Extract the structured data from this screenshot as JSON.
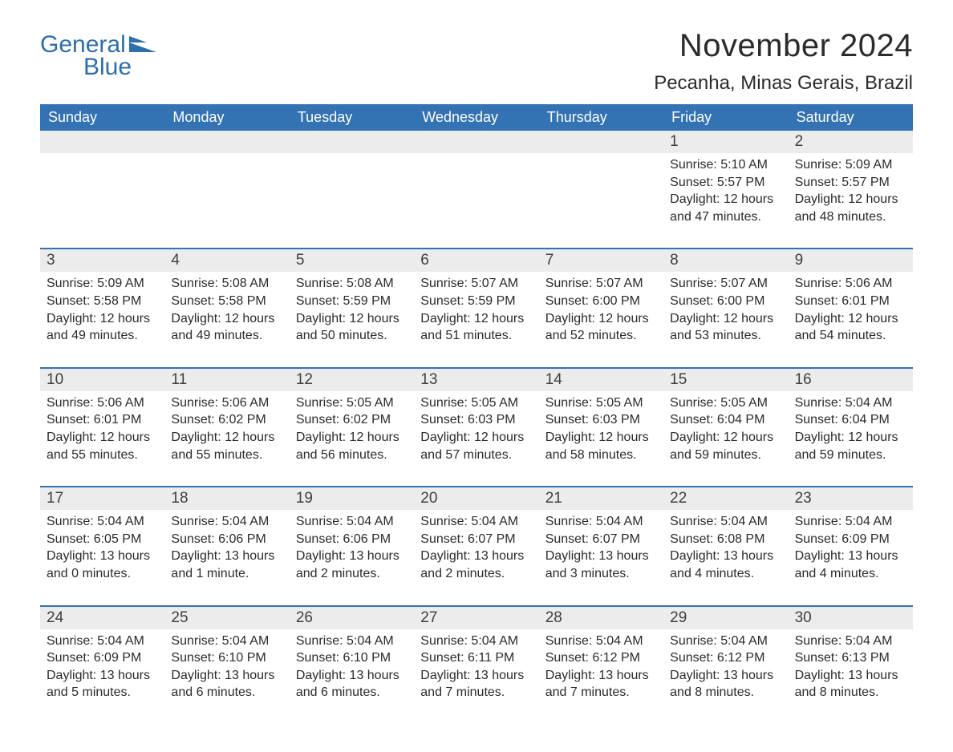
{
  "logo": {
    "word1": "General",
    "word2": "Blue"
  },
  "title": "November 2024",
  "location": "Pecanha, Minas Gerais, Brazil",
  "colors": {
    "header_bg": "#3373b4",
    "header_text": "#ffffff",
    "daynum_bg": "#ececec",
    "border": "#3373b4",
    "text": "#2b2b2b",
    "logo": "#2b6fae"
  },
  "typography": {
    "title_fontsize": 40,
    "location_fontsize": 24,
    "dayheader_fontsize": 18,
    "daynum_fontsize": 19,
    "body_fontsize": 16
  },
  "layout": {
    "type": "calendar",
    "columns": 7,
    "rows": 5,
    "first_weekday": "Sunday"
  },
  "day_names": [
    "Sunday",
    "Monday",
    "Tuesday",
    "Wednesday",
    "Thursday",
    "Friday",
    "Saturday"
  ],
  "weeks": [
    [
      {
        "empty": true
      },
      {
        "empty": true
      },
      {
        "empty": true
      },
      {
        "empty": true
      },
      {
        "empty": true
      },
      {
        "day": "1",
        "sunrise": "Sunrise: 5:10 AM",
        "sunset": "Sunset: 5:57 PM",
        "daylight": "Daylight: 12 hours and 47 minutes."
      },
      {
        "day": "2",
        "sunrise": "Sunrise: 5:09 AM",
        "sunset": "Sunset: 5:57 PM",
        "daylight": "Daylight: 12 hours and 48 minutes."
      }
    ],
    [
      {
        "day": "3",
        "sunrise": "Sunrise: 5:09 AM",
        "sunset": "Sunset: 5:58 PM",
        "daylight": "Daylight: 12 hours and 49 minutes."
      },
      {
        "day": "4",
        "sunrise": "Sunrise: 5:08 AM",
        "sunset": "Sunset: 5:58 PM",
        "daylight": "Daylight: 12 hours and 49 minutes."
      },
      {
        "day": "5",
        "sunrise": "Sunrise: 5:08 AM",
        "sunset": "Sunset: 5:59 PM",
        "daylight": "Daylight: 12 hours and 50 minutes."
      },
      {
        "day": "6",
        "sunrise": "Sunrise: 5:07 AM",
        "sunset": "Sunset: 5:59 PM",
        "daylight": "Daylight: 12 hours and 51 minutes."
      },
      {
        "day": "7",
        "sunrise": "Sunrise: 5:07 AM",
        "sunset": "Sunset: 6:00 PM",
        "daylight": "Daylight: 12 hours and 52 minutes."
      },
      {
        "day": "8",
        "sunrise": "Sunrise: 5:07 AM",
        "sunset": "Sunset: 6:00 PM",
        "daylight": "Daylight: 12 hours and 53 minutes."
      },
      {
        "day": "9",
        "sunrise": "Sunrise: 5:06 AM",
        "sunset": "Sunset: 6:01 PM",
        "daylight": "Daylight: 12 hours and 54 minutes."
      }
    ],
    [
      {
        "day": "10",
        "sunrise": "Sunrise: 5:06 AM",
        "sunset": "Sunset: 6:01 PM",
        "daylight": "Daylight: 12 hours and 55 minutes."
      },
      {
        "day": "11",
        "sunrise": "Sunrise: 5:06 AM",
        "sunset": "Sunset: 6:02 PM",
        "daylight": "Daylight: 12 hours and 55 minutes."
      },
      {
        "day": "12",
        "sunrise": "Sunrise: 5:05 AM",
        "sunset": "Sunset: 6:02 PM",
        "daylight": "Daylight: 12 hours and 56 minutes."
      },
      {
        "day": "13",
        "sunrise": "Sunrise: 5:05 AM",
        "sunset": "Sunset: 6:03 PM",
        "daylight": "Daylight: 12 hours and 57 minutes."
      },
      {
        "day": "14",
        "sunrise": "Sunrise: 5:05 AM",
        "sunset": "Sunset: 6:03 PM",
        "daylight": "Daylight: 12 hours and 58 minutes."
      },
      {
        "day": "15",
        "sunrise": "Sunrise: 5:05 AM",
        "sunset": "Sunset: 6:04 PM",
        "daylight": "Daylight: 12 hours and 59 minutes."
      },
      {
        "day": "16",
        "sunrise": "Sunrise: 5:04 AM",
        "sunset": "Sunset: 6:04 PM",
        "daylight": "Daylight: 12 hours and 59 minutes."
      }
    ],
    [
      {
        "day": "17",
        "sunrise": "Sunrise: 5:04 AM",
        "sunset": "Sunset: 6:05 PM",
        "daylight": "Daylight: 13 hours and 0 minutes."
      },
      {
        "day": "18",
        "sunrise": "Sunrise: 5:04 AM",
        "sunset": "Sunset: 6:06 PM",
        "daylight": "Daylight: 13 hours and 1 minute."
      },
      {
        "day": "19",
        "sunrise": "Sunrise: 5:04 AM",
        "sunset": "Sunset: 6:06 PM",
        "daylight": "Daylight: 13 hours and 2 minutes."
      },
      {
        "day": "20",
        "sunrise": "Sunrise: 5:04 AM",
        "sunset": "Sunset: 6:07 PM",
        "daylight": "Daylight: 13 hours and 2 minutes."
      },
      {
        "day": "21",
        "sunrise": "Sunrise: 5:04 AM",
        "sunset": "Sunset: 6:07 PM",
        "daylight": "Daylight: 13 hours and 3 minutes."
      },
      {
        "day": "22",
        "sunrise": "Sunrise: 5:04 AM",
        "sunset": "Sunset: 6:08 PM",
        "daylight": "Daylight: 13 hours and 4 minutes."
      },
      {
        "day": "23",
        "sunrise": "Sunrise: 5:04 AM",
        "sunset": "Sunset: 6:09 PM",
        "daylight": "Daylight: 13 hours and 4 minutes."
      }
    ],
    [
      {
        "day": "24",
        "sunrise": "Sunrise: 5:04 AM",
        "sunset": "Sunset: 6:09 PM",
        "daylight": "Daylight: 13 hours and 5 minutes."
      },
      {
        "day": "25",
        "sunrise": "Sunrise: 5:04 AM",
        "sunset": "Sunset: 6:10 PM",
        "daylight": "Daylight: 13 hours and 6 minutes."
      },
      {
        "day": "26",
        "sunrise": "Sunrise: 5:04 AM",
        "sunset": "Sunset: 6:10 PM",
        "daylight": "Daylight: 13 hours and 6 minutes."
      },
      {
        "day": "27",
        "sunrise": "Sunrise: 5:04 AM",
        "sunset": "Sunset: 6:11 PM",
        "daylight": "Daylight: 13 hours and 7 minutes."
      },
      {
        "day": "28",
        "sunrise": "Sunrise: 5:04 AM",
        "sunset": "Sunset: 6:12 PM",
        "daylight": "Daylight: 13 hours and 7 minutes."
      },
      {
        "day": "29",
        "sunrise": "Sunrise: 5:04 AM",
        "sunset": "Sunset: 6:12 PM",
        "daylight": "Daylight: 13 hours and 8 minutes."
      },
      {
        "day": "30",
        "sunrise": "Sunrise: 5:04 AM",
        "sunset": "Sunset: 6:13 PM",
        "daylight": "Daylight: 13 hours and 8 minutes."
      }
    ]
  ]
}
